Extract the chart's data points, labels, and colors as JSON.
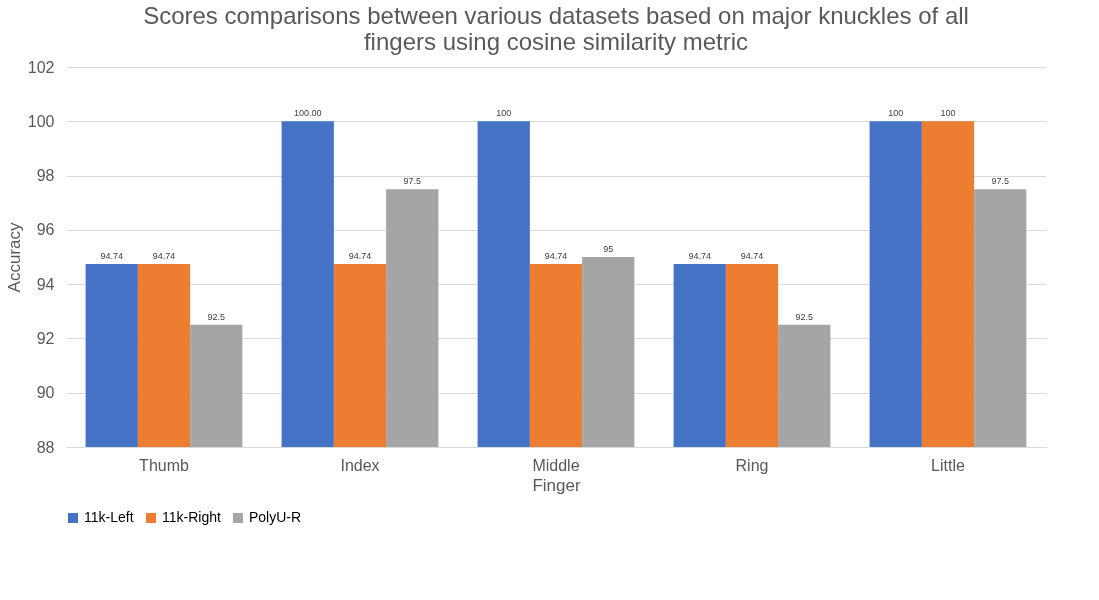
{
  "chart_data": {
    "type": "bar",
    "title": "Scores comparisons between various datasets based on major knuckles of all fingers using cosine similarity metric",
    "xlabel": "Finger",
    "ylabel": "Accuracy",
    "categories": [
      "Thumb",
      "Index",
      "Middle",
      "Ring",
      "Little"
    ],
    "series": [
      {
        "name": "11k-Left",
        "color": "#4472c4",
        "values": [
          94.74,
          100,
          100,
          94.74,
          100
        ],
        "value_labels": [
          "94.74",
          "100.00",
          "100",
          "94.74",
          "100"
        ]
      },
      {
        "name": "11k-Right",
        "color": "#ed7d31",
        "values": [
          94.74,
          94.74,
          94.74,
          94.74,
          100
        ],
        "value_labels": [
          "94.74",
          "94.74",
          "94.74",
          "94.74",
          "100"
        ]
      },
      {
        "name": "PolyU-R",
        "color": "#a5a5a5",
        "values": [
          92.5,
          97.5,
          95,
          92.5,
          97.5
        ],
        "value_labels": [
          "92.5",
          "97.5",
          "95",
          "92.5",
          "97.5"
        ]
      }
    ],
    "ylim": [
      88,
      102
    ],
    "yticks": [
      88,
      90,
      92,
      94,
      96,
      98,
      100,
      102
    ],
    "grid": "y",
    "legend": "bottom"
  }
}
